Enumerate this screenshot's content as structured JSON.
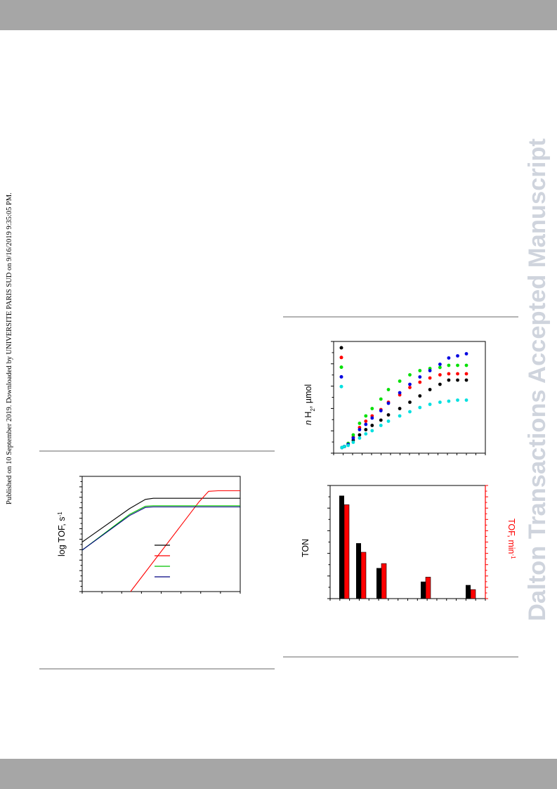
{
  "side_note": "Published on 10 September 2019. Downloaded by UNIVERSITE PARIS SUD on 9/16/2019 9:35:05 PM.",
  "watermark": "Dalton Transactions Accepted Manuscript",
  "colors": {
    "band": "#a6a6a6",
    "watermark": "#cfd4dd",
    "red_axis": "#ff0000"
  },
  "chart_data": [
    {
      "type": "line",
      "ylabel": "log TOF, s",
      "ylabel_sup": "-1",
      "series": [
        {
          "color": "#000000",
          "points": [
            [
              0,
              0.43
            ],
            [
              0.3,
              0.72
            ],
            [
              0.4,
              0.8
            ],
            [
              0.45,
              0.81
            ],
            [
              1,
              0.81
            ]
          ]
        },
        {
          "color": "#ff0000",
          "points": [
            [
              0,
              -0.55
            ],
            [
              0.74,
              0.78
            ],
            [
              0.8,
              0.87
            ],
            [
              0.86,
              0.875
            ],
            [
              1,
              0.875
            ]
          ]
        },
        {
          "color": "#00c000",
          "points": [
            [
              0,
              0.36
            ],
            [
              0.3,
              0.67
            ],
            [
              0.4,
              0.74
            ],
            [
              0.45,
              0.745
            ],
            [
              1,
              0.745
            ]
          ]
        },
        {
          "color": "#000080",
          "points": [
            [
              0,
              0.36
            ],
            [
              0.3,
              0.66
            ],
            [
              0.4,
              0.73
            ],
            [
              0.45,
              0.735
            ],
            [
              1,
              0.735
            ]
          ]
        }
      ],
      "legend_colors": [
        "#000000",
        "#ff0000",
        "#00c000",
        "#000080"
      ]
    },
    {
      "type": "scatter",
      "ylabel_prefix": "n",
      "ylabel_main": "H",
      "ylabel_sub": "2",
      "ylabel_unit": ", µmol",
      "series": [
        {
          "color": "#000000",
          "points": [
            [
              0.01,
              0.06
            ],
            [
              0.03,
              0.07
            ],
            [
              0.06,
              0.09
            ],
            [
              0.1,
              0.13
            ],
            [
              0.15,
              0.18
            ],
            [
              0.2,
              0.23
            ],
            [
              0.25,
              0.27
            ],
            [
              0.32,
              0.32
            ],
            [
              0.38,
              0.37
            ],
            [
              0.47,
              0.43
            ],
            [
              0.55,
              0.49
            ],
            [
              0.63,
              0.55
            ],
            [
              0.71,
              0.61
            ],
            [
              0.79,
              0.66
            ],
            [
              0.86,
              0.7
            ],
            [
              0.93,
              0.7
            ],
            [
              1,
              0.7
            ]
          ]
        },
        {
          "color": "#ff0000",
          "points": [
            [
              0.01,
              0.06
            ],
            [
              0.03,
              0.07
            ],
            [
              0.06,
              0.09
            ],
            [
              0.1,
              0.16
            ],
            [
              0.15,
              0.25
            ],
            [
              0.2,
              0.31
            ],
            [
              0.25,
              0.36
            ],
            [
              0.32,
              0.42
            ],
            [
              0.38,
              0.49
            ],
            [
              0.47,
              0.56
            ],
            [
              0.55,
              0.63
            ],
            [
              0.63,
              0.68
            ],
            [
              0.71,
              0.72
            ],
            [
              0.79,
              0.75
            ],
            [
              0.86,
              0.76
            ],
            [
              0.93,
              0.76
            ],
            [
              1,
              0.76
            ]
          ]
        },
        {
          "color": "#00e000",
          "points": [
            [
              0.01,
              0.06
            ],
            [
              0.03,
              0.07
            ],
            [
              0.06,
              0.1
            ],
            [
              0.1,
              0.18
            ],
            [
              0.15,
              0.29
            ],
            [
              0.2,
              0.36
            ],
            [
              0.25,
              0.43
            ],
            [
              0.32,
              0.52
            ],
            [
              0.38,
              0.61
            ],
            [
              0.47,
              0.69
            ],
            [
              0.55,
              0.75
            ],
            [
              0.63,
              0.79
            ],
            [
              0.71,
              0.81
            ],
            [
              0.79,
              0.82
            ],
            [
              0.86,
              0.84
            ],
            [
              0.93,
              0.84
            ],
            [
              1,
              0.84
            ]
          ]
        },
        {
          "color": "#0000e0",
          "points": [
            [
              0.01,
              0.06
            ],
            [
              0.03,
              0.07
            ],
            [
              0.06,
              0.09
            ],
            [
              0.1,
              0.15
            ],
            [
              0.15,
              0.23
            ],
            [
              0.2,
              0.28
            ],
            [
              0.25,
              0.34
            ],
            [
              0.32,
              0.41
            ],
            [
              0.38,
              0.48
            ],
            [
              0.47,
              0.58
            ],
            [
              0.55,
              0.66
            ],
            [
              0.63,
              0.73
            ],
            [
              0.71,
              0.79
            ],
            [
              0.79,
              0.85
            ],
            [
              0.86,
              0.91
            ],
            [
              0.93,
              0.93
            ],
            [
              1,
              0.95
            ]
          ]
        },
        {
          "color": "#00e0e0",
          "points": [
            [
              0.01,
              0.06
            ],
            [
              0.03,
              0.07
            ],
            [
              0.06,
              0.08
            ],
            [
              0.1,
              0.11
            ],
            [
              0.15,
              0.15
            ],
            [
              0.2,
              0.19
            ],
            [
              0.25,
              0.22
            ],
            [
              0.32,
              0.27
            ],
            [
              0.38,
              0.31
            ],
            [
              0.47,
              0.36
            ],
            [
              0.55,
              0.4
            ],
            [
              0.63,
              0.44
            ],
            [
              0.71,
              0.47
            ],
            [
              0.79,
              0.49
            ],
            [
              0.86,
              0.5
            ],
            [
              0.93,
              0.51
            ],
            [
              1,
              0.51
            ]
          ]
        }
      ],
      "legend_colors": [
        "#000000",
        "#ff0000",
        "#00e000",
        "#0000e0",
        "#00e0e0"
      ]
    },
    {
      "type": "bar",
      "ylabel_left": "TON",
      "ylabel_right": "TOF, min",
      "ylabel_right_sup": "-1",
      "groups": [
        {
          "ton": 0.91,
          "tof": 0.83
        },
        {
          "ton": 0.49,
          "tof": 0.41
        },
        {
          "ton": 0.27,
          "tof": 0.31
        },
        {
          "ton": 0.15,
          "tof": 0.19
        },
        {
          "ton": 0.12,
          "tof": 0.08
        }
      ],
      "colors": [
        "#000000",
        "#ff0000"
      ]
    }
  ]
}
